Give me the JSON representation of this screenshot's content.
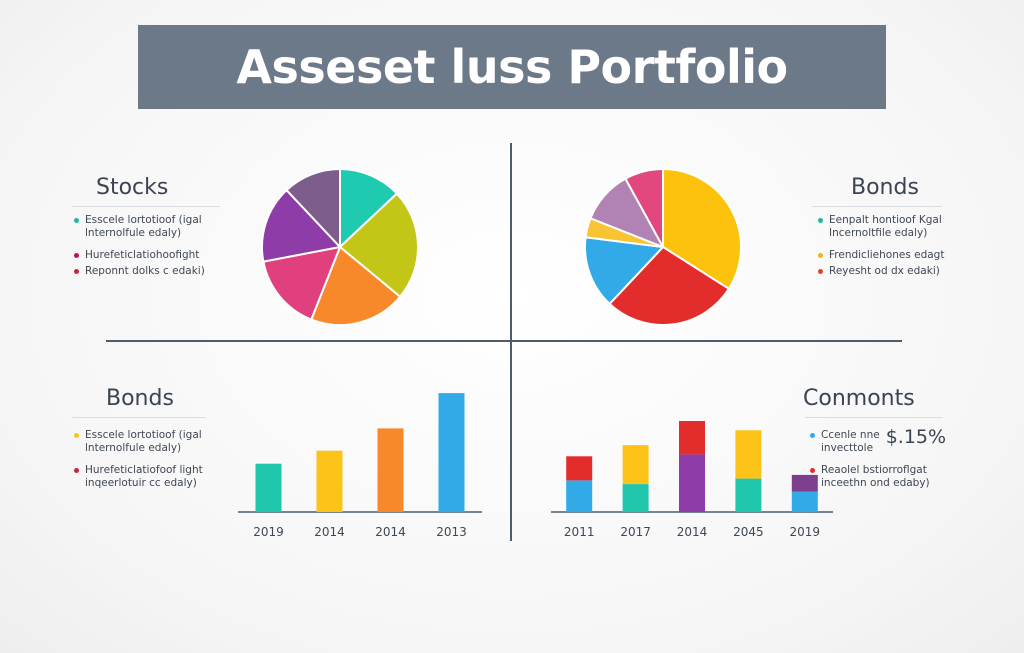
{
  "title": "Asseset luss Portfolio",
  "chart_data": [
    {
      "type": "pie",
      "title": "Stocks",
      "slices": [
        {
          "value": 13,
          "color": "#1ecbb0"
        },
        {
          "value": 23,
          "color": "#c4c617"
        },
        {
          "value": 20,
          "color": "#f7892b"
        },
        {
          "value": 16,
          "color": "#e0417e"
        },
        {
          "value": 16,
          "color": "#8e3ca8"
        },
        {
          "value": 12,
          "color": "#7d5d8c"
        }
      ],
      "legend": [
        {
          "label": "Esscele lortotioof (igal\nlnternolfule edaly)",
          "color": "#1fb5a6"
        },
        {
          "label": "Hurefeticlatiohoofight",
          "color": "#b5165a"
        },
        {
          "label": "Reponnt dolks c edaki)",
          "color": "#c2263d"
        }
      ]
    },
    {
      "type": "pie",
      "title": "Bonds",
      "slices": [
        {
          "value": 34,
          "color": "#fcc20c"
        },
        {
          "value": 28,
          "color": "#e32c2c"
        },
        {
          "value": 15,
          "color": "#33aae8"
        },
        {
          "value": 4,
          "color": "#f9c431"
        },
        {
          "value": 11,
          "color": "#b083b4"
        },
        {
          "value": 8,
          "color": "#e2477e"
        }
      ],
      "legend": [
        {
          "label": "Eenpalt hontioof Kgal\nIncernoltfile edaly)",
          "color": "#1fb5a6"
        },
        {
          "label": "Frendicliehones edagt",
          "color": "#f2b516"
        },
        {
          "label": "Reyesht od dx edaki)",
          "color": "#e0432a"
        }
      ]
    },
    {
      "type": "bar",
      "title": "Bonds",
      "categories": [
        "2019",
        "2014",
        "2014",
        "2013"
      ],
      "values": [
        26,
        33,
        45,
        64
      ],
      "colors": [
        "#20c7ac",
        "#fcc418",
        "#f7892b",
        "#33aae8"
      ],
      "ylim": [
        0,
        70
      ],
      "legend": [
        {
          "label": "Esscele lortotioof (igal\nlnternolfule edaly)",
          "color": "#fcc418"
        },
        {
          "label": "Hurefeticlatiofoof light\ninqeerlotuir cc edaly)",
          "color": "#c2263d"
        }
      ]
    },
    {
      "type": "bar",
      "stacked": true,
      "title": "Conmonts",
      "categories": [
        "2011",
        "2017",
        "2014",
        "2045",
        "2019"
      ],
      "series": [
        {
          "values": [
            17,
            15,
            31,
            18,
            11
          ],
          "colors": [
            "#33aae8",
            "#20c7ac",
            "#8e3ca8",
            "#20c7ac",
            "#33aae8"
          ]
        },
        {
          "values": [
            13,
            21,
            18,
            26,
            9
          ],
          "colors": [
            "#e32c2c",
            "#fcc418",
            "#e32c2c",
            "#fcc418",
            "#7d3f8c"
          ]
        }
      ],
      "ylim": [
        0,
        70
      ],
      "legend": [
        {
          "label": "Ccenle nne\ninvecttole",
          "value": "$.15%",
          "color": "#33aae8"
        },
        {
          "label": "Reaolel bstiorroflgat\ninceethn ond edaby)",
          "color": "#e32c2c"
        }
      ]
    }
  ]
}
